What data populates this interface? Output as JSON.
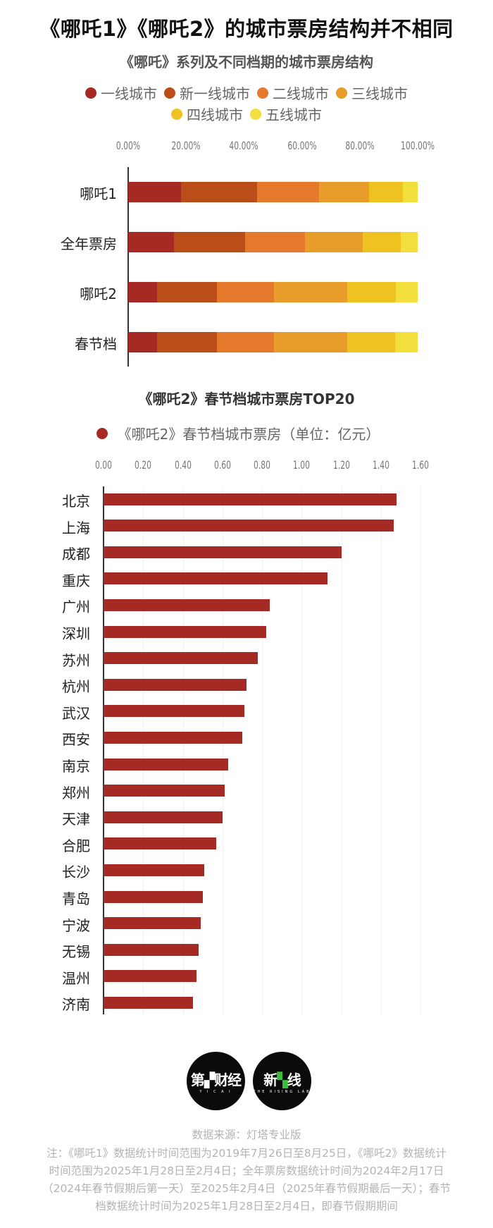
{
  "title": "《哪吒1》《哪吒2》的城市票房结构并不相同",
  "chart_data": [
    {
      "type": "bar",
      "orientation": "horizontal",
      "stacked": true,
      "title": "《哪吒》系列及不同档期的城市票房结构",
      "categories": [
        "哪吒1",
        "全年票房",
        "哪吒2",
        "春节档"
      ],
      "series": [
        {
          "name": "一线城市",
          "color": "#A52A24",
          "values": [
            18.2,
            15.8,
            10.0,
            10.0
          ]
        },
        {
          "name": "新一线城市",
          "color": "#BA4E18",
          "values": [
            26.3,
            24.6,
            20.7,
            20.7
          ]
        },
        {
          "name": "二线城市",
          "color": "#E67A2C",
          "values": [
            21.4,
            20.7,
            19.7,
            19.7
          ]
        },
        {
          "name": "三线城市",
          "color": "#E89C2A",
          "values": [
            17.3,
            20.0,
            25.3,
            25.3
          ]
        },
        {
          "name": "四线城市",
          "color": "#EEC321",
          "values": [
            11.7,
            13.1,
            16.8,
            16.5
          ]
        },
        {
          "name": "五线城市",
          "color": "#F2DE3C",
          "values": [
            5.1,
            5.8,
            7.5,
            7.8
          ]
        }
      ],
      "xticks": [
        "0.00%",
        "20.00%",
        "40.00%",
        "60.00%",
        "80.00%",
        "100.00%"
      ],
      "xlim": [
        0,
        100
      ],
      "xlabel": "",
      "ylabel": "",
      "legend_position": "top",
      "grid": false
    },
    {
      "type": "bar",
      "orientation": "horizontal",
      "title": "《哪吒2》春节档城市票房TOP20",
      "legend": "《哪吒2》春节档城市票房（单位：亿元）",
      "color": "#A52A24",
      "categories": [
        "北京",
        "上海",
        "成都",
        "重庆",
        "广州",
        "深圳",
        "苏州",
        "杭州",
        "武汉",
        "西安",
        "南京",
        "郑州",
        "天津",
        "合肥",
        "长沙",
        "青岛",
        "宁波",
        "无锡",
        "温州",
        "济南"
      ],
      "values": [
        1.48,
        1.465,
        1.2,
        1.13,
        0.84,
        0.82,
        0.78,
        0.72,
        0.71,
        0.7,
        0.63,
        0.61,
        0.6,
        0.57,
        0.51,
        0.5,
        0.49,
        0.48,
        0.47,
        0.45
      ],
      "xticks": [
        "0.00",
        "0.20",
        "0.40",
        "0.60",
        "0.80",
        "1.00",
        "1.20",
        "1.40",
        "1.60"
      ],
      "xlim": [
        0,
        1.6
      ],
      "xlabel": "",
      "ylabel": "",
      "legend_position": "top",
      "grid": true
    }
  ],
  "logos": [
    {
      "main_left": "第",
      "accent": "▞",
      "main_right": "财经",
      "sub": "Y I C A I"
    },
    {
      "main_left": "新",
      "accent": "▚",
      "main_right": "线",
      "sub": "THE RISING LAB"
    }
  ],
  "footer": {
    "source": "数据来源：灯塔专业版",
    "note": "注：《哪吒1》数据统计时间范围为2019年7月26日至8月25日，《哪吒2》数据统计时间范围为2025年1月28日至2月4日；全年票房数据统计时间为2024年2月17日（2024年春节假期后第一天）至2025年2月4日（2025年春节假期最后一天）；春节档数据统计时间为2025年1月28日至2月4日，即春节假期期间"
  }
}
